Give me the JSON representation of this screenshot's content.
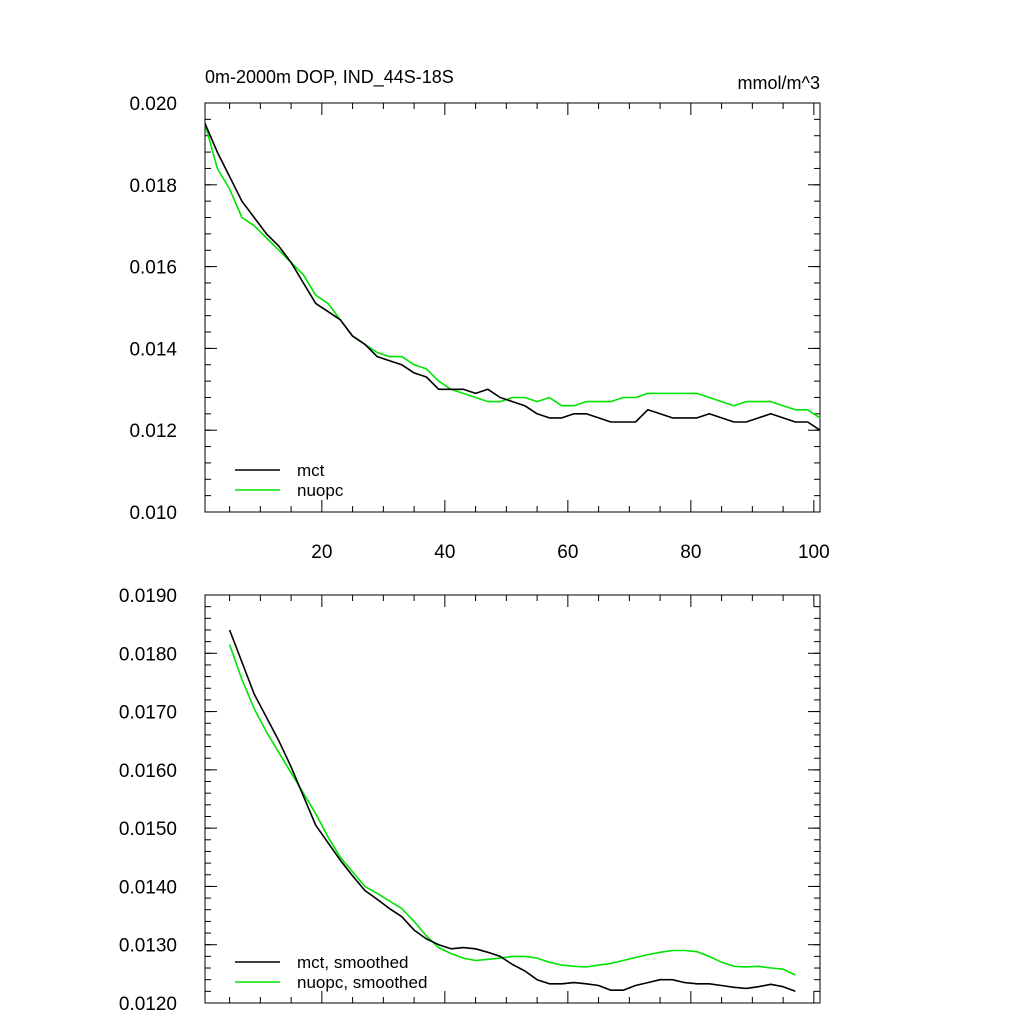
{
  "chart_data": [
    {
      "type": "line",
      "title": "0m-2000m DOP, IND_44S-18S",
      "units": "mmol/m^3",
      "xlabel": "",
      "ylabel": "",
      "xlim": [
        1,
        101
      ],
      "ylim": [
        0.01,
        0.02
      ],
      "xticks": [
        20,
        40,
        60,
        80,
        100
      ],
      "xtick_labels": [
        "20",
        "40",
        "60",
        "80",
        "100"
      ],
      "yticks": [
        0.01,
        0.012,
        0.014,
        0.016,
        0.018,
        0.02
      ],
      "ytick_labels": [
        "0.010",
        "0.012",
        "0.014",
        "0.016",
        "0.018",
        "0.020"
      ],
      "legend_position": "bottom-left",
      "series": [
        {
          "name": "mct",
          "color": "#000000",
          "x": [
            1,
            3,
            5,
            7,
            9,
            11,
            13,
            15,
            17,
            19,
            21,
            23,
            25,
            27,
            29,
            31,
            33,
            35,
            37,
            39,
            41,
            43,
            45,
            47,
            49,
            51,
            53,
            55,
            57,
            59,
            61,
            63,
            65,
            67,
            69,
            71,
            73,
            75,
            77,
            79,
            81,
            83,
            85,
            87,
            89,
            91,
            93,
            95,
            97,
            99,
            101
          ],
          "values": [
            0.0195,
            0.0188,
            0.0182,
            0.0176,
            0.0172,
            0.0168,
            0.0165,
            0.0161,
            0.0156,
            0.0151,
            0.0149,
            0.0147,
            0.0143,
            0.0141,
            0.0138,
            0.0137,
            0.0136,
            0.0134,
            0.0133,
            0.013,
            0.013,
            0.013,
            0.0129,
            0.013,
            0.0128,
            0.0127,
            0.0126,
            0.0124,
            0.0123,
            0.0123,
            0.0124,
            0.0124,
            0.0123,
            0.0122,
            0.0122,
            0.0122,
            0.0125,
            0.0124,
            0.0123,
            0.0123,
            0.0123,
            0.0124,
            0.0123,
            0.0122,
            0.0122,
            0.0123,
            0.0124,
            0.0123,
            0.0122,
            0.0122,
            0.012
          ]
        },
        {
          "name": "nuopc",
          "color": "#00e400",
          "x": [
            1,
            3,
            5,
            7,
            9,
            11,
            13,
            15,
            17,
            19,
            21,
            23,
            25,
            27,
            29,
            31,
            33,
            35,
            37,
            39,
            41,
            43,
            45,
            47,
            49,
            51,
            53,
            55,
            57,
            59,
            61,
            63,
            65,
            67,
            69,
            71,
            73,
            75,
            77,
            79,
            81,
            83,
            85,
            87,
            89,
            91,
            93,
            95,
            97,
            99,
            101
          ],
          "values": [
            0.0195,
            0.0184,
            0.0179,
            0.0172,
            0.017,
            0.0167,
            0.0164,
            0.0161,
            0.0158,
            0.0153,
            0.0151,
            0.0147,
            0.0143,
            0.0141,
            0.0139,
            0.0138,
            0.0138,
            0.0136,
            0.0135,
            0.0132,
            0.013,
            0.0129,
            0.0128,
            0.0127,
            0.0127,
            0.0128,
            0.0128,
            0.0127,
            0.0128,
            0.0126,
            0.0126,
            0.0127,
            0.0127,
            0.0127,
            0.0128,
            0.0128,
            0.0129,
            0.0129,
            0.0129,
            0.0129,
            0.0129,
            0.0128,
            0.0127,
            0.0126,
            0.0127,
            0.0127,
            0.0127,
            0.0126,
            0.0125,
            0.0125,
            0.0123
          ]
        }
      ]
    },
    {
      "type": "line",
      "title": "",
      "xlabel": "",
      "ylabel": "",
      "xlim": [
        1,
        101
      ],
      "ylim": [
        0.012,
        0.019
      ],
      "xticks": [
        20,
        40,
        60,
        80,
        100
      ],
      "xtick_labels": [],
      "yticks": [
        0.012,
        0.013,
        0.014,
        0.015,
        0.016,
        0.017,
        0.018,
        0.019
      ],
      "ytick_labels": [
        "0.0120",
        "0.0130",
        "0.0140",
        "0.0150",
        "0.0160",
        "0.0170",
        "0.0180",
        "0.0190"
      ],
      "legend_position": "bottom-left",
      "series": [
        {
          "name": "mct, smoothed",
          "color": "#000000",
          "x": [
            5,
            7,
            9,
            11,
            13,
            15,
            17,
            19,
            21,
            23,
            25,
            27,
            29,
            31,
            33,
            35,
            37,
            39,
            41,
            43,
            45,
            47,
            49,
            51,
            53,
            55,
            57,
            59,
            61,
            63,
            65,
            67,
            69,
            71,
            73,
            75,
            77,
            79,
            81,
            83,
            85,
            87,
            89,
            91,
            93,
            95,
            97
          ],
          "values": [
            0.0184,
            0.01785,
            0.0173,
            0.0169,
            0.0165,
            0.01605,
            0.01555,
            0.01505,
            0.01475,
            0.01445,
            0.01418,
            0.01393,
            0.01378,
            0.01362,
            0.01348,
            0.01325,
            0.0131,
            0.013,
            0.01293,
            0.01295,
            0.01293,
            0.01287,
            0.0128,
            0.01266,
            0.01255,
            0.0124,
            0.01233,
            0.01233,
            0.01235,
            0.01233,
            0.0123,
            0.01222,
            0.01222,
            0.0123,
            0.01235,
            0.0124,
            0.0124,
            0.01235,
            0.01233,
            0.01233,
            0.0123,
            0.01227,
            0.01225,
            0.01228,
            0.01232,
            0.01228,
            0.0122
          ]
        },
        {
          "name": "nuopc, smoothed",
          "color": "#00e400",
          "x": [
            5,
            7,
            9,
            11,
            13,
            15,
            17,
            19,
            21,
            23,
            25,
            27,
            29,
            31,
            33,
            35,
            37,
            39,
            41,
            43,
            45,
            47,
            49,
            51,
            53,
            55,
            57,
            59,
            61,
            63,
            65,
            67,
            69,
            71,
            73,
            75,
            77,
            79,
            81,
            83,
            85,
            87,
            89,
            91,
            93,
            95,
            97
          ],
          "values": [
            0.01815,
            0.01755,
            0.01705,
            0.01665,
            0.0163,
            0.01595,
            0.0156,
            0.01525,
            0.01485,
            0.0145,
            0.01425,
            0.014,
            0.01388,
            0.01375,
            0.01362,
            0.0134,
            0.01315,
            0.01295,
            0.01285,
            0.01277,
            0.01273,
            0.01275,
            0.01277,
            0.0128,
            0.0128,
            0.01277,
            0.0127,
            0.01265,
            0.01263,
            0.01262,
            0.01265,
            0.01268,
            0.01273,
            0.01278,
            0.01283,
            0.01287,
            0.0129,
            0.0129,
            0.01288,
            0.0128,
            0.0127,
            0.01263,
            0.01262,
            0.01263,
            0.0126,
            0.01258,
            0.01248
          ]
        }
      ]
    }
  ]
}
